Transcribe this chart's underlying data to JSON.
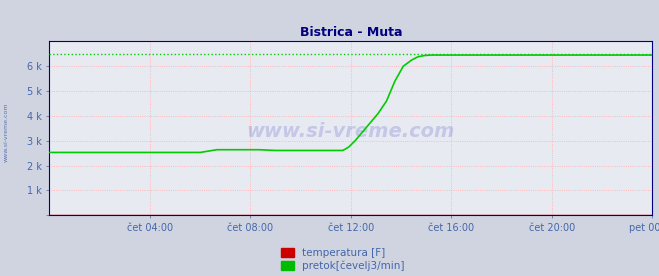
{
  "title": "Bistrica - Muta",
  "title_color": "#000080",
  "bg_color": "#d0d4e0",
  "plot_bg_color": "#e8eaf2",
  "grid_color": "#ffaaaa",
  "tick_color": "#4466aa",
  "axis_color": "#000080",
  "legend_labels": [
    "temperatura [F]",
    "pretok[čevelj3/min]"
  ],
  "legend_colors": [
    "#cc0000",
    "#00bb00"
  ],
  "watermark": "www.si-vreme.com",
  "watermark_color": "#0000aa",
  "watermark_alpha": 0.15,
  "total_points": 288,
  "ylim": [
    0,
    7000
  ],
  "yticks": [
    0,
    1000,
    2000,
    3000,
    4000,
    5000,
    6000
  ],
  "ytick_labels": [
    "",
    "1 k",
    "2 k",
    "3 k",
    "4 k",
    "5 k",
    "6 k"
  ],
  "xtick_positions": [
    48,
    96,
    144,
    192,
    240,
    288
  ],
  "xtick_labels": [
    "čet 04:00",
    "čet 08:00",
    "čet 12:00",
    "čet 16:00",
    "čet 20:00",
    "pet 00:00"
  ],
  "pretok_color": "#00cc00",
  "temperatura_color": "#cc0000",
  "pretok_x": [
    0,
    72,
    72,
    80,
    80,
    100,
    100,
    108,
    108,
    140,
    141,
    143,
    146,
    149,
    153,
    157,
    161,
    165,
    169,
    173,
    176,
    179,
    182,
    183,
    288
  ],
  "pretok_y": [
    2530,
    2530,
    2530,
    2640,
    2640,
    2640,
    2640,
    2610,
    2610,
    2610,
    2650,
    2750,
    3000,
    3300,
    3700,
    4100,
    4600,
    5400,
    6000,
    6250,
    6380,
    6430,
    6450,
    6450,
    6450
  ],
  "pretok_dotted_y": 6500,
  "temperatura_y": 20
}
